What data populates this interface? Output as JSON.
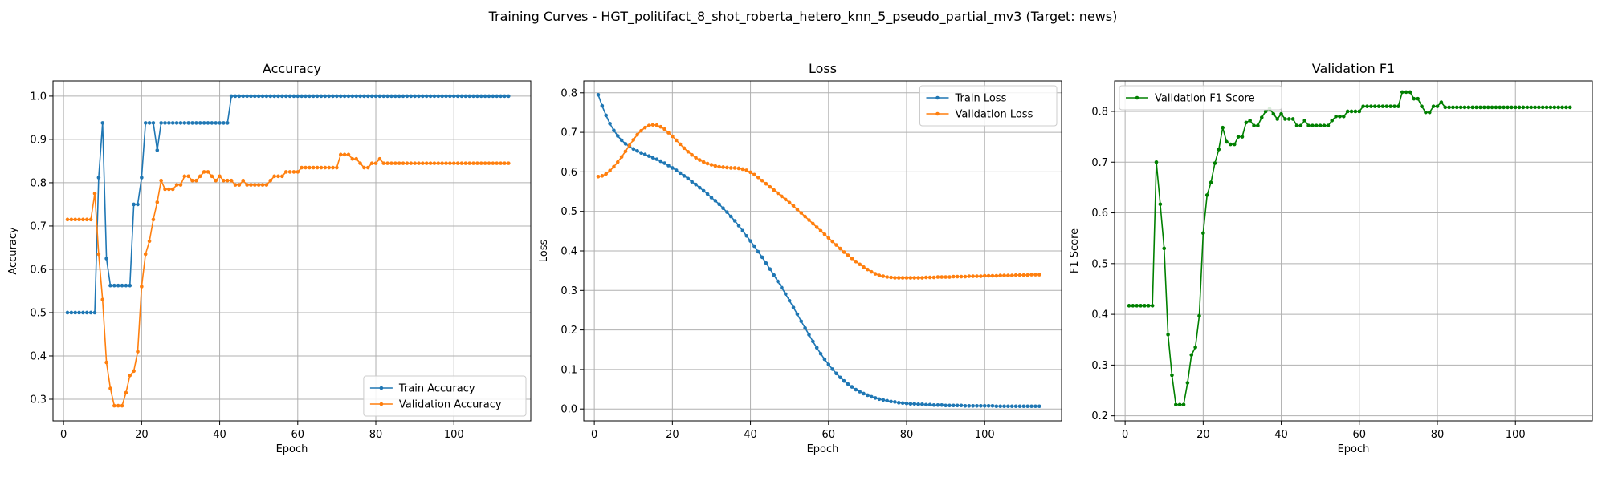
{
  "figure": {
    "suptitle": "Training Curves - HGT_politifact_8_shot_roberta_hetero_knn_5_pseudo_partial_mv3 (Target: news)"
  },
  "chart_data": [
    {
      "type": "line",
      "title": "Accuracy",
      "xlabel": "Epoch",
      "ylabel": "Accuracy",
      "xlim": [
        -2.7,
        119.7
      ],
      "ylim": [
        0.25,
        1.035
      ],
      "xticks": [
        0,
        20,
        40,
        60,
        80,
        100
      ],
      "yticks": [
        0.3,
        0.4,
        0.5,
        0.6,
        0.7,
        0.8,
        0.9,
        1.0
      ],
      "ytick_labels": [
        "0.3",
        "0.4",
        "0.5",
        "0.6",
        "0.7",
        "0.8",
        "0.9",
        "1.0"
      ],
      "grid": true,
      "legend_position": "lower-right",
      "series": [
        {
          "name": "Train Accuracy",
          "color": "#1f77b4",
          "values": [
            0.5,
            0.5,
            0.5,
            0.5,
            0.5,
            0.5,
            0.5,
            0.5,
            0.812,
            0.938,
            0.625,
            0.5625,
            0.5625,
            0.5625,
            0.5625,
            0.5625,
            0.5625,
            0.75,
            0.75,
            0.812,
            0.938,
            0.938,
            0.938,
            0.875,
            0.938,
            0.938,
            0.938,
            0.938,
            0.938,
            0.938,
            0.938,
            0.938,
            0.938,
            0.938,
            0.938,
            0.938,
            0.938,
            0.938,
            0.938,
            0.938,
            0.938,
            0.938,
            1.0,
            1.0,
            1.0,
            1.0,
            1.0,
            1.0,
            1.0,
            1.0,
            1.0,
            1.0,
            1.0,
            1.0,
            1.0,
            1.0,
            1.0,
            1.0,
            1.0,
            1.0,
            1.0,
            1.0,
            1.0,
            1.0,
            1.0,
            1.0,
            1.0,
            1.0,
            1.0,
            1.0,
            1.0,
            1.0,
            1.0,
            1.0,
            1.0,
            1.0,
            1.0,
            1.0,
            1.0,
            1.0,
            1.0,
            1.0,
            1.0,
            1.0,
            1.0,
            1.0,
            1.0,
            1.0,
            1.0,
            1.0,
            1.0,
            1.0,
            1.0,
            1.0,
            1.0,
            1.0,
            1.0,
            1.0,
            1.0,
            1.0,
            1.0,
            1.0,
            1.0,
            1.0,
            1.0,
            1.0,
            1.0,
            1.0,
            1.0,
            1.0,
            1.0,
            1.0,
            1.0,
            1.0
          ]
        },
        {
          "name": "Validation Accuracy",
          "color": "#ff7f0e",
          "values": [
            0.715,
            0.715,
            0.715,
            0.715,
            0.715,
            0.715,
            0.715,
            0.775,
            0.635,
            0.53,
            0.385,
            0.325,
            0.285,
            0.285,
            0.285,
            0.315,
            0.355,
            0.365,
            0.41,
            0.56,
            0.635,
            0.665,
            0.715,
            0.755,
            0.805,
            0.785,
            0.785,
            0.785,
            0.795,
            0.795,
            0.815,
            0.815,
            0.805,
            0.805,
            0.815,
            0.825,
            0.825,
            0.815,
            0.805,
            0.815,
            0.805,
            0.805,
            0.805,
            0.795,
            0.795,
            0.805,
            0.795,
            0.795,
            0.795,
            0.795,
            0.795,
            0.795,
            0.805,
            0.815,
            0.815,
            0.815,
            0.825,
            0.825,
            0.825,
            0.825,
            0.835,
            0.835,
            0.835,
            0.835,
            0.835,
            0.835,
            0.835,
            0.835,
            0.835,
            0.835,
            0.865,
            0.865,
            0.865,
            0.855,
            0.855,
            0.845,
            0.835,
            0.835,
            0.845,
            0.845,
            0.855,
            0.845,
            0.845,
            0.845,
            0.845,
            0.845,
            0.845,
            0.845,
            0.845,
            0.845,
            0.845,
            0.845,
            0.845,
            0.845,
            0.845,
            0.845,
            0.845,
            0.845,
            0.845,
            0.845,
            0.845,
            0.845,
            0.845,
            0.845,
            0.845,
            0.845,
            0.845,
            0.845,
            0.845,
            0.845,
            0.845,
            0.845,
            0.845,
            0.845
          ]
        }
      ]
    },
    {
      "type": "line",
      "title": "Loss",
      "xlabel": "Epoch",
      "ylabel": "Loss",
      "xlim": [
        -2.7,
        119.7
      ],
      "ylim": [
        -0.03,
        0.83
      ],
      "xticks": [
        0,
        20,
        40,
        60,
        80,
        100
      ],
      "yticks": [
        0.0,
        0.1,
        0.2,
        0.3,
        0.4,
        0.5,
        0.6,
        0.7,
        0.8
      ],
      "ytick_labels": [
        "0.0",
        "0.1",
        "0.2",
        "0.3",
        "0.4",
        "0.5",
        "0.6",
        "0.7",
        "0.8"
      ],
      "grid": true,
      "legend_position": "upper-right",
      "series": [
        {
          "name": "Train Loss",
          "color": "#1f77b4",
          "values": [
            0.795,
            0.767,
            0.743,
            0.722,
            0.705,
            0.691,
            0.68,
            0.671,
            0.664,
            0.658,
            0.653,
            0.648,
            0.644,
            0.64,
            0.636,
            0.632,
            0.627,
            0.622,
            0.616,
            0.61,
            0.604,
            0.597,
            0.59,
            0.583,
            0.575,
            0.568,
            0.56,
            0.552,
            0.544,
            0.535,
            0.527,
            0.518,
            0.508,
            0.498,
            0.487,
            0.476,
            0.464,
            0.451,
            0.438,
            0.425,
            0.412,
            0.398,
            0.384,
            0.369,
            0.354,
            0.339,
            0.323,
            0.307,
            0.291,
            0.274,
            0.257,
            0.24,
            0.222,
            0.205,
            0.188,
            0.171,
            0.155,
            0.14,
            0.126,
            0.113,
            0.101,
            0.09,
            0.08,
            0.071,
            0.063,
            0.056,
            0.049,
            0.044,
            0.039,
            0.035,
            0.031,
            0.028,
            0.025,
            0.023,
            0.021,
            0.019,
            0.018,
            0.016,
            0.015,
            0.014,
            0.013,
            0.013,
            0.012,
            0.012,
            0.011,
            0.011,
            0.01,
            0.01,
            0.01,
            0.009,
            0.009,
            0.009,
            0.009,
            0.009,
            0.008,
            0.008,
            0.008,
            0.008,
            0.008,
            0.008,
            0.008,
            0.008,
            0.007,
            0.007,
            0.007,
            0.007,
            0.007,
            0.007,
            0.007,
            0.007,
            0.007,
            0.007,
            0.007,
            0.007
          ]
        },
        {
          "name": "Validation Loss",
          "color": "#ff7f0e",
          "values": [
            0.588,
            0.59,
            0.595,
            0.603,
            0.613,
            0.625,
            0.638,
            0.652,
            0.667,
            0.681,
            0.694,
            0.704,
            0.712,
            0.717,
            0.719,
            0.718,
            0.714,
            0.708,
            0.699,
            0.69,
            0.68,
            0.67,
            0.66,
            0.651,
            0.643,
            0.636,
            0.63,
            0.625,
            0.621,
            0.618,
            0.615,
            0.613,
            0.612,
            0.611,
            0.61,
            0.61,
            0.609,
            0.607,
            0.604,
            0.599,
            0.593,
            0.586,
            0.578,
            0.57,
            0.562,
            0.554,
            0.546,
            0.538,
            0.53,
            0.522,
            0.514,
            0.505,
            0.496,
            0.487,
            0.478,
            0.469,
            0.46,
            0.451,
            0.442,
            0.433,
            0.424,
            0.415,
            0.406,
            0.397,
            0.389,
            0.381,
            0.373,
            0.366,
            0.359,
            0.353,
            0.347,
            0.342,
            0.338,
            0.336,
            0.334,
            0.333,
            0.332,
            0.332,
            0.332,
            0.332,
            0.332,
            0.332,
            0.332,
            0.332,
            0.333,
            0.333,
            0.333,
            0.334,
            0.334,
            0.334,
            0.334,
            0.335,
            0.335,
            0.335,
            0.335,
            0.336,
            0.336,
            0.336,
            0.336,
            0.337,
            0.337,
            0.337,
            0.337,
            0.338,
            0.338,
            0.338,
            0.338,
            0.339,
            0.339,
            0.339,
            0.339,
            0.34,
            0.34,
            0.34
          ]
        }
      ]
    },
    {
      "type": "line",
      "title": "Validation F1",
      "xlabel": "Epoch",
      "ylabel": "F1 Score",
      "xlim": [
        -2.7,
        119.7
      ],
      "ylim": [
        0.19,
        0.86
      ],
      "xticks": [
        0,
        20,
        40,
        60,
        80,
        100
      ],
      "yticks": [
        0.2,
        0.3,
        0.4,
        0.5,
        0.6,
        0.7,
        0.8
      ],
      "ytick_labels": [
        "0.2",
        "0.3",
        "0.4",
        "0.5",
        "0.6",
        "0.7",
        "0.8"
      ],
      "grid": true,
      "legend_position": "upper-left",
      "series": [
        {
          "name": "Validation F1 Score",
          "color": "#008000",
          "values": [
            0.417,
            0.417,
            0.417,
            0.417,
            0.417,
            0.417,
            0.417,
            0.7,
            0.617,
            0.53,
            0.36,
            0.28,
            0.222,
            0.222,
            0.222,
            0.265,
            0.32,
            0.335,
            0.397,
            0.56,
            0.635,
            0.66,
            0.698,
            0.725,
            0.768,
            0.74,
            0.735,
            0.735,
            0.75,
            0.75,
            0.778,
            0.782,
            0.772,
            0.772,
            0.788,
            0.8,
            0.805,
            0.795,
            0.785,
            0.795,
            0.785,
            0.785,
            0.785,
            0.772,
            0.772,
            0.782,
            0.772,
            0.772,
            0.772,
            0.772,
            0.772,
            0.772,
            0.782,
            0.79,
            0.79,
            0.79,
            0.8,
            0.8,
            0.8,
            0.8,
            0.81,
            0.81,
            0.81,
            0.81,
            0.81,
            0.81,
            0.81,
            0.81,
            0.81,
            0.81,
            0.838,
            0.838,
            0.838,
            0.825,
            0.825,
            0.81,
            0.798,
            0.798,
            0.81,
            0.81,
            0.818,
            0.808,
            0.808,
            0.808,
            0.808,
            0.808,
            0.808,
            0.808,
            0.808,
            0.808,
            0.808,
            0.808,
            0.808,
            0.808,
            0.808,
            0.808,
            0.808,
            0.808,
            0.808,
            0.808,
            0.808,
            0.808,
            0.808,
            0.808,
            0.808,
            0.808,
            0.808,
            0.808,
            0.808,
            0.808,
            0.808,
            0.808,
            0.808,
            0.808
          ]
        }
      ]
    }
  ]
}
